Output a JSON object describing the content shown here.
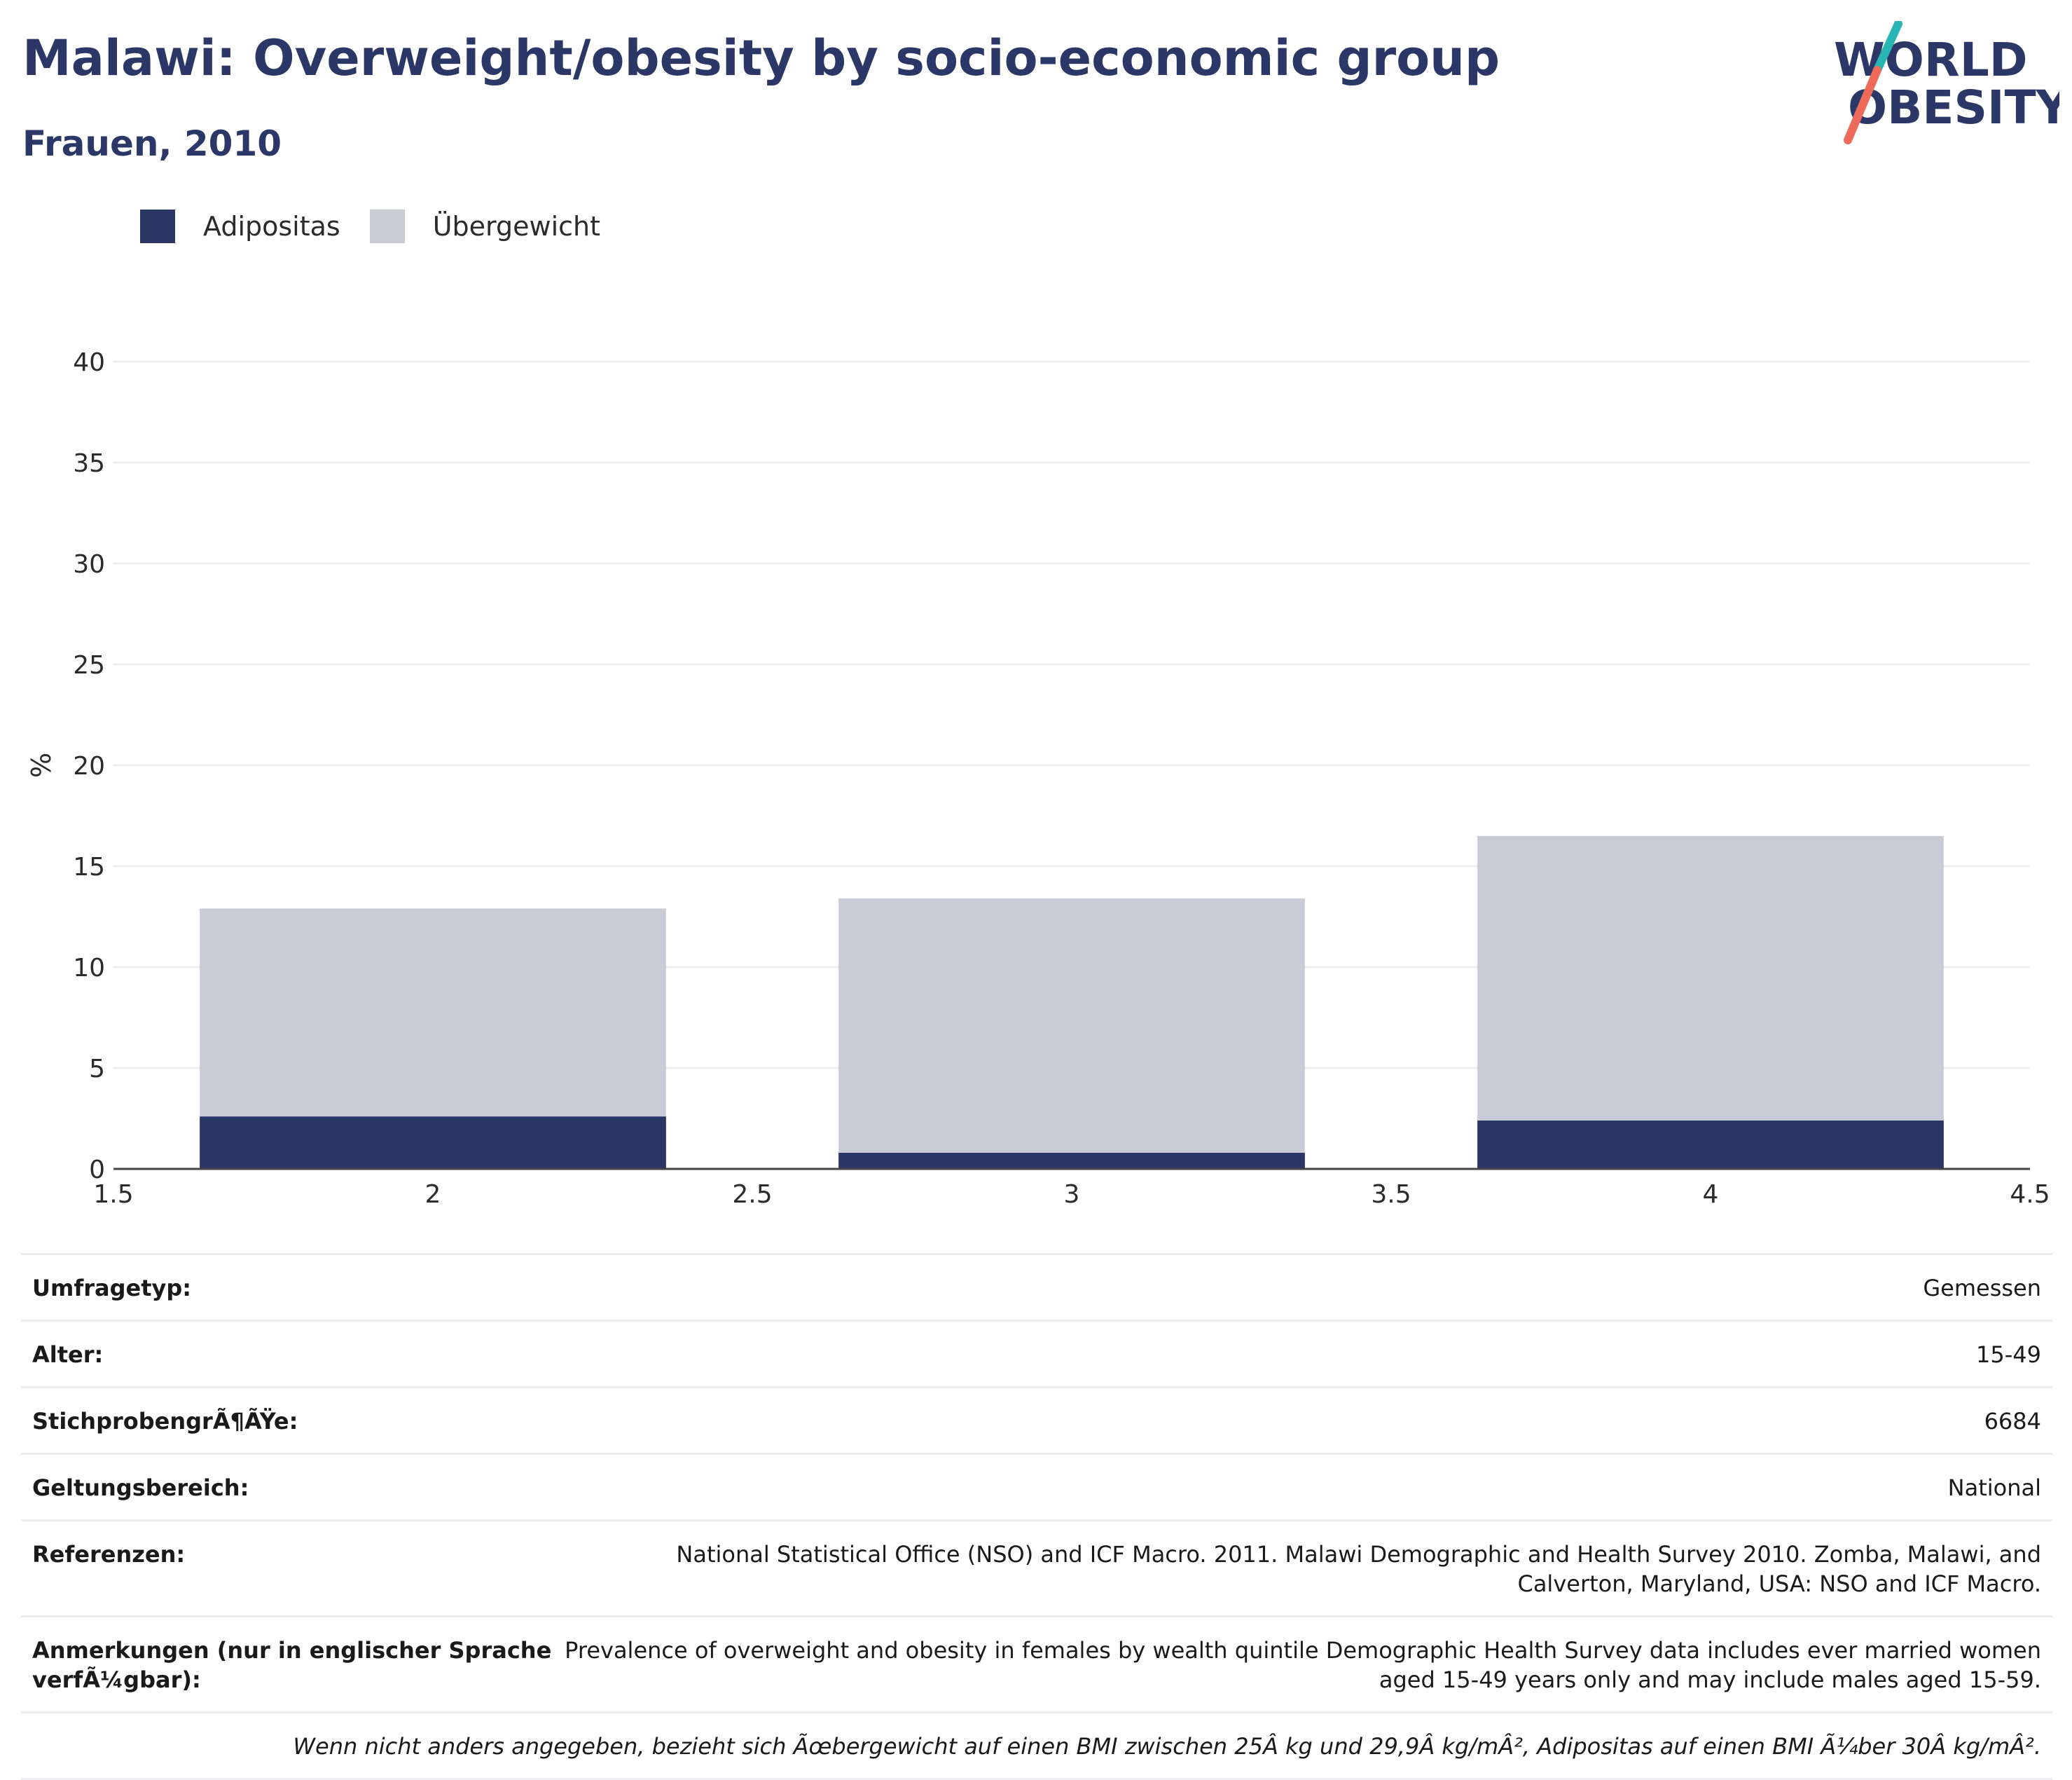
{
  "header": {
    "title": "Malawi: Overweight/obesity by socio-economic group",
    "subtitle": "Frauen, 2010"
  },
  "logo": {
    "line1": "WORLD",
    "line2": "OBESITY"
  },
  "colors": {
    "obesity": "#2a3663",
    "overweight": "#c9ccd6",
    "title": "#2b3867",
    "logo_teal": "#2ab5b5",
    "logo_coral": "#ee6b5b"
  },
  "chart_data": {
    "type": "bar",
    "stacked": true,
    "ylabel": "%",
    "xlim": [
      1.5,
      4.5
    ],
    "ylim": [
      0,
      40
    ],
    "x_ticks": [
      "1.5",
      "2",
      "2.5",
      "3",
      "3.5",
      "4",
      "4.5"
    ],
    "y_ticks": [
      "0",
      "5",
      "10",
      "15",
      "20",
      "25",
      "30",
      "35",
      "40"
    ],
    "grid": true,
    "legend_position": "top-left",
    "x": [
      2,
      3,
      4
    ],
    "series": [
      {
        "name": "Adipositas",
        "values": [
          2.6,
          0.8,
          2.4
        ]
      },
      {
        "name": "Übergewicht",
        "values": [
          10.3,
          12.6,
          14.1
        ]
      }
    ]
  },
  "info": {
    "rows": [
      {
        "label": "Umfragetyp:",
        "value": "Gemessen"
      },
      {
        "label": "Alter:",
        "value": "15-49"
      },
      {
        "label": "StichprobengrÃ¶ÃŸe:",
        "value": "6684"
      },
      {
        "label": "Geltungsbereich:",
        "value": "National"
      },
      {
        "label": "Referenzen:",
        "value": "National Statistical Office (NSO) and ICF Macro. 2011. Malawi Demographic and Health Survey 2010. Zomba, Malawi, and Calverton, Maryland, USA: NSO and ICF Macro."
      },
      {
        "label": "Anmerkungen (nur in englischer Sprache verfÃ¼gbar):",
        "value": "Prevalence of overweight and obesity in females by wealth quintile Demographic Health Survey data includes ever married women aged 15-49 years only and may include males aged 15-59."
      }
    ],
    "footnote": "Wenn nicht anders angegeben, bezieht sich Ãœbergewicht auf einen BMI zwischen 25Â kg und 29,9Â kg/mÂ², Adipositas auf einen BMI Ã¼ber 30Â kg/mÂ²."
  }
}
